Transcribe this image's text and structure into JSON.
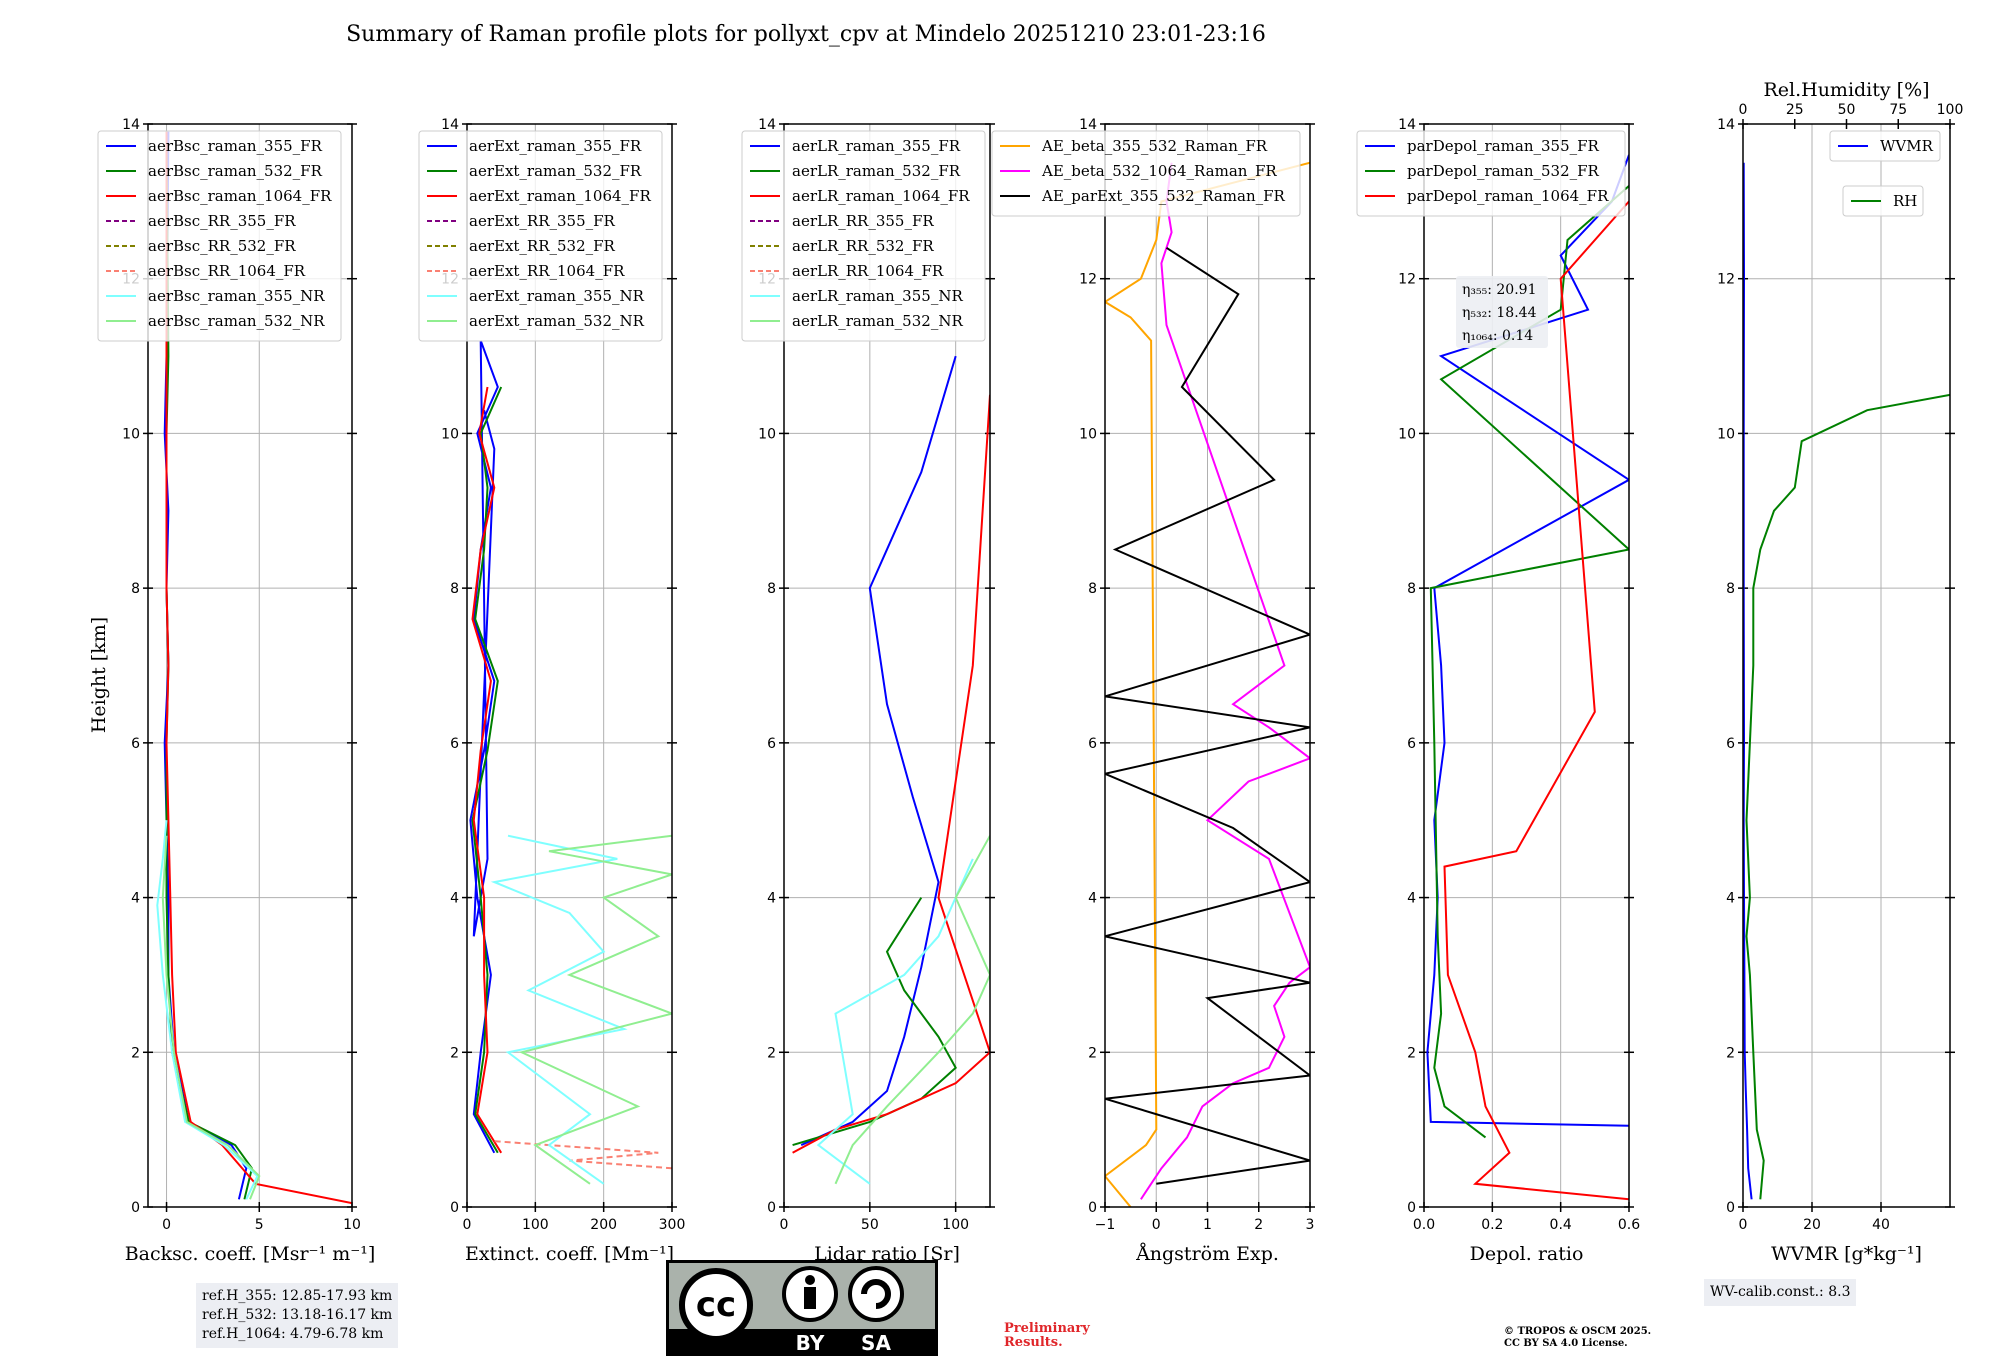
{
  "title": "Summary of Raman profile plots for pollyxt_cpv at Mindelo 20251210 23:01-23:16",
  "ylabel": "Height [km]",
  "height_ticks": [
    "0",
    "2",
    "4",
    "6",
    "8",
    "10",
    "12",
    "14"
  ],
  "colors": {
    "blue": "#0000ff",
    "green": "#008000",
    "red": "#ff0000",
    "purple": "#800080",
    "olive": "#808000",
    "salmon": "#fa8072",
    "cyan": "#7fffff",
    "lightgreen": "#90ee90",
    "orange": "#ffa500",
    "magenta": "#ff00ff",
    "black": "#000000"
  },
  "chart_data": [
    {
      "type": "line",
      "xlabel": "Backsc. coeff. [Msr⁻¹ m⁻¹]",
      "ylabel": "Height [km]",
      "xlim": [
        -1,
        10
      ],
      "ylim": [
        0,
        14
      ],
      "xticks": [
        "0",
        "5",
        "10"
      ],
      "legend": [
        "aerBsc_raman_355_FR",
        "aerBsc_raman_532_FR",
        "aerBsc_raman_1064_FR",
        "aerBsc_RR_355_FR",
        "aerBsc_RR_532_FR",
        "aerBsc_RR_1064_FR",
        "aerBsc_raman_355_NR",
        "aerBsc_raman_532_NR"
      ],
      "legend_position": "top-left",
      "series": [
        {
          "name": "aerBsc_raman_355_FR",
          "color": "blue",
          "x": [
            3.9,
            4.3,
            3.5,
            1.2,
            0.4,
            0.1,
            0.1,
            0.0,
            -0.1,
            0.1,
            0.0,
            0.1,
            -0.1,
            0.0,
            0.1
          ],
          "y": [
            0.1,
            0.5,
            0.8,
            1.1,
            2,
            3,
            4,
            5,
            6,
            7,
            8,
            9,
            10,
            11,
            13.9
          ]
        },
        {
          "name": "aerBsc_raman_532_FR",
          "color": "green",
          "x": [
            4.2,
            4.6,
            3.7,
            1.2,
            0.3,
            0.1,
            0.0,
            0.0,
            0.0,
            0.1,
            0.0,
            0.0,
            0.0,
            0.1,
            0.0
          ],
          "y": [
            0.1,
            0.5,
            0.8,
            1.1,
            2,
            3,
            4,
            5,
            6,
            7,
            8,
            9,
            10,
            11,
            13.9
          ]
        },
        {
          "name": "aerBsc_raman_1064_FR",
          "color": "red",
          "x": [
            10,
            4.8,
            3.0,
            1.3,
            0.5,
            0.3,
            0.2,
            0.1,
            0.0,
            0.1,
            0.0,
            0.0,
            0.0,
            0.0,
            0.0
          ],
          "y": [
            0.05,
            0.3,
            0.8,
            1.1,
            2,
            3,
            4,
            5,
            6,
            7,
            8,
            9,
            10,
            11,
            13.9
          ]
        },
        {
          "name": "aerBsc_raman_355_NR",
          "color": "cyan",
          "x": [
            4.3,
            4.9,
            3.1,
            1.0,
            0.3,
            -0.2,
            -0.5,
            -0.2,
            0.0
          ],
          "y": [
            0.1,
            0.4,
            0.8,
            1.1,
            2,
            3,
            3.9,
            4.5,
            5.0
          ]
        },
        {
          "name": "aerBsc_raman_532_NR",
          "color": "lightgreen",
          "x": [
            4.5,
            5.0,
            3.3,
            1.1,
            0.4,
            0.0,
            -0.2,
            0.0
          ],
          "y": [
            0.1,
            0.4,
            0.8,
            1.1,
            2,
            3,
            4,
            4.8
          ]
        }
      ]
    },
    {
      "type": "line",
      "xlabel": "Extinct. coeff. [Mm⁻¹]",
      "ylabel": "Height [km]",
      "xlim": [
        0,
        300
      ],
      "ylim": [
        0,
        14
      ],
      "xticks": [
        "0",
        "100",
        "200",
        "300"
      ],
      "legend": [
        "aerExt_raman_355_FR",
        "aerExt_raman_532_FR",
        "aerExt_raman_1064_FR",
        "aerExt_RR_355_FR",
        "aerExt_RR_532_FR",
        "aerExt_RR_1064_FR",
        "aerExt_raman_355_NR",
        "aerExt_raman_532_NR"
      ],
      "legend_position": "top-left",
      "series": [
        {
          "name": "aerExt_raman_355_FR",
          "color": "blue",
          "x": [
            40,
            10,
            20,
            35,
            15,
            5,
            25,
            40,
            10,
            20,
            35,
            15,
            45,
            20,
            30,
            10,
            40,
            25
          ],
          "y": [
            0.7,
            1.2,
            2,
            3,
            4,
            5,
            5.9,
            6.8,
            7.6,
            8.5,
            9.3,
            10,
            10.6,
            11.2,
            4.5,
            3.5,
            9.8,
            10.3
          ]
        },
        {
          "name": "aerExt_raman_532_FR",
          "color": "green",
          "x": [
            45,
            12,
            25,
            30,
            20,
            8,
            30,
            45,
            12,
            25,
            30,
            20,
            50
          ],
          "y": [
            0.7,
            1.2,
            2,
            3,
            4,
            5,
            5.9,
            6.8,
            7.6,
            8.5,
            9.3,
            10,
            10.6
          ]
        },
        {
          "name": "aerExt_raman_1064_FR",
          "color": "red",
          "x": [
            50,
            15,
            30,
            25,
            25,
            10,
            20,
            35,
            8,
            20,
            40,
            18,
            30
          ],
          "y": [
            0.7,
            1.2,
            2,
            3,
            4,
            5,
            5.9,
            6.8,
            7.6,
            8.5,
            9.3,
            10,
            10.6
          ]
        },
        {
          "name": "aerExt_RR_1064_FR",
          "color": "salmon",
          "x": [
            300,
            150,
            280,
            120,
            40
          ],
          "y": [
            0.5,
            0.6,
            0.7,
            0.8,
            0.85
          ]
        },
        {
          "name": "aerExt_raman_355_NR",
          "color": "cyan",
          "x": [
            200,
            120,
            180,
            60,
            230,
            90,
            200,
            150,
            40,
            220,
            60
          ],
          "y": [
            0.3,
            0.8,
            1.2,
            2,
            2.3,
            2.8,
            3.3,
            3.8,
            4.2,
            4.5,
            4.8
          ]
        },
        {
          "name": "aerExt_raman_532_NR",
          "color": "lightgreen",
          "x": [
            180,
            100,
            250,
            80,
            300,
            150,
            280,
            200,
            300,
            120,
            300
          ],
          "y": [
            0.3,
            0.8,
            1.3,
            2,
            2.5,
            3,
            3.5,
            4,
            4.3,
            4.6,
            4.8
          ]
        }
      ]
    },
    {
      "type": "line",
      "xlabel": "Lidar ratio [Sr]",
      "ylabel": "Height [km]",
      "xlim": [
        0,
        120
      ],
      "ylim": [
        0,
        14
      ],
      "xticks": [
        "0",
        "50",
        "100"
      ],
      "legend": [
        "aerLR_raman_355_FR",
        "aerLR_raman_532_FR",
        "aerLR_raman_1064_FR",
        "aerLR_RR_355_FR",
        "aerLR_RR_532_FR",
        "aerLR_RR_1064_FR",
        "aerLR_raman_355_NR",
        "aerLR_raman_532_NR"
      ],
      "legend_position": "top-left",
      "series": [
        {
          "name": "aerLR_raman_355_FR",
          "color": "blue",
          "x": [
            10,
            40,
            60,
            70,
            80,
            90,
            75,
            60,
            50,
            80,
            100
          ],
          "y": [
            0.8,
            1.1,
            1.5,
            2.2,
            3.1,
            4.2,
            5.3,
            6.5,
            8.0,
            9.5,
            11.0
          ]
        },
        {
          "name": "aerLR_raman_532_FR",
          "color": "green",
          "x": [
            5,
            50,
            80,
            100,
            90,
            70,
            60,
            80
          ],
          "y": [
            0.8,
            1.1,
            1.4,
            1.8,
            2.2,
            2.8,
            3.3,
            4.0
          ]
        },
        {
          "name": "aerLR_raman_1064_FR",
          "color": "red",
          "x": [
            5,
            30,
            60,
            100,
            120,
            90,
            110,
            120
          ],
          "y": [
            0.7,
            1.0,
            1.2,
            1.6,
            2.0,
            4.0,
            7.0,
            10.5
          ]
        },
        {
          "name": "aerLR_raman_355_NR",
          "color": "cyan",
          "x": [
            50,
            20,
            40,
            30,
            70,
            90,
            110
          ],
          "y": [
            0.3,
            0.8,
            1.2,
            2.5,
            3.0,
            3.5,
            4.5
          ]
        },
        {
          "name": "aerLR_raman_532_NR",
          "color": "lightgreen",
          "x": [
            30,
            40,
            60,
            90,
            110,
            120,
            100,
            120
          ],
          "y": [
            0.3,
            0.8,
            1.3,
            2.0,
            2.5,
            3.0,
            4.0,
            4.8
          ]
        }
      ]
    },
    {
      "type": "line",
      "xlabel": "Ångström Exp.",
      "ylabel": "Height [km]",
      "xlim": [
        -1,
        3
      ],
      "ylim": [
        0,
        14
      ],
      "xticks": [
        "−1",
        "0",
        "1",
        "2",
        "3"
      ],
      "legend": [
        "AE_beta_355_532_Raman_FR",
        "AE_beta_532_1064_Raman_FR",
        "AE_parExt_355_532_Raman_FR"
      ],
      "legend_position": "top-left",
      "series": [
        {
          "name": "AE_beta_355_532_Raman_FR",
          "color": "orange",
          "x": [
            -0.5,
            -1.0,
            -0.2,
            0.0,
            -0.1,
            -0.5,
            -1.0,
            -0.3,
            0.0,
            0.1,
            3.0
          ],
          "y": [
            0.0,
            0.4,
            0.8,
            1.0,
            11.2,
            11.5,
            11.7,
            12.0,
            12.5,
            13.0,
            13.5
          ]
        },
        {
          "name": "AE_beta_532_1064_Raman_FR",
          "color": "magenta",
          "x": [
            -0.3,
            0.1,
            0.6,
            0.9,
            1.5,
            2.2,
            2.5,
            2.3,
            2.6,
            3.0,
            2.2,
            1.0,
            1.8,
            3.0,
            2.2,
            1.5,
            2.5,
            0.2,
            0.1,
            0.3,
            0.2,
            0.3
          ],
          "y": [
            0.1,
            0.5,
            0.9,
            1.3,
            1.6,
            1.8,
            2.2,
            2.6,
            2.9,
            3.1,
            4.5,
            5.0,
            5.5,
            5.8,
            6.2,
            6.5,
            7.0,
            11.4,
            12.2,
            12.6,
            13.0,
            13.5
          ]
        },
        {
          "name": "AE_parExt_355_532_Raman_FR",
          "color": "black",
          "x": [
            0.0,
            3.0,
            -1.0,
            3.0,
            1.0,
            3.0,
            -1.0,
            3.0,
            1.5,
            -1.0,
            3.0,
            -1.0,
            3.0,
            -0.8,
            2.3,
            0.5,
            1.6,
            0.2
          ],
          "y": [
            0.3,
            0.6,
            1.4,
            1.7,
            2.7,
            2.9,
            3.5,
            4.2,
            4.9,
            5.6,
            6.2,
            6.6,
            7.4,
            8.5,
            9.4,
            10.6,
            11.8,
            12.4
          ]
        }
      ]
    },
    {
      "type": "line",
      "xlabel": "Depol. ratio",
      "ylabel": "Height [km]",
      "xlim": [
        0.0,
        0.6
      ],
      "ylim": [
        0,
        14
      ],
      "xticks": [
        "0.0",
        "0.2",
        "0.4",
        "0.6"
      ],
      "legend": [
        "parDepol_raman_355_FR",
        "parDepol_raman_532_FR",
        "parDepol_raman_1064_FR"
      ],
      "legend_position": "top-left",
      "annotations": [
        "η₃₅₅: 20.91",
        "η₅₃₂: 18.44",
        "η₁₀₆₄: 0.14"
      ],
      "series": [
        {
          "name": "parDepol_raman_355_FR",
          "color": "blue",
          "x": [
            0.6,
            0.02,
            0.01,
            0.03,
            0.04,
            0.03,
            0.06,
            0.05,
            0.04,
            0.03,
            0.6,
            0.05,
            0.48,
            0.4,
            0.55,
            0.6
          ],
          "y": [
            1.05,
            1.1,
            2,
            3,
            4,
            5,
            6,
            7,
            7.5,
            8,
            9.4,
            11,
            11.6,
            12.3,
            13.0,
            13.6
          ]
        },
        {
          "name": "parDepol_raman_532_FR",
          "color": "green",
          "x": [
            0.18,
            0.06,
            0.03,
            0.05,
            0.04,
            0.03,
            0.02,
            0.6,
            0.05,
            0.4,
            0.42,
            0.6
          ],
          "y": [
            0.9,
            1.3,
            1.8,
            2.5,
            3.5,
            6,
            8,
            8.5,
            10.7,
            11.6,
            12.5,
            13.2
          ]
        },
        {
          "name": "parDepol_raman_1064_FR",
          "color": "red",
          "x": [
            0.6,
            0.15,
            0.25,
            0.18,
            0.15,
            0.07,
            0.06,
            0.27,
            0.5,
            0.4,
            0.6
          ],
          "y": [
            0.1,
            0.3,
            0.7,
            1.3,
            2.0,
            3.0,
            4.4,
            4.6,
            6.4,
            12.0,
            13.0
          ]
        }
      ]
    },
    {
      "type": "line",
      "xlabel": "WVMR [g*kg⁻¹]",
      "ylabel": "Height [km]",
      "top_xlabel": "Rel.Humidity [%]",
      "xlim": [
        0,
        60
      ],
      "ylim": [
        0,
        14
      ],
      "xticks": [
        "0",
        "20",
        "40"
      ],
      "top_xticks": [
        "0",
        "25",
        "50",
        "75",
        "100"
      ],
      "legend": [
        "WVMR",
        "RH"
      ],
      "legend_position": "top-right",
      "series": [
        {
          "name": "WVMR",
          "color": "blue",
          "x": [
            2.5,
            1.5,
            1.2,
            0.8,
            0.5,
            0.4,
            0.3,
            0.2,
            0.3,
            0.2,
            0.2,
            0.3,
            0.2
          ],
          "y": [
            0.1,
            0.5,
            1.0,
            1.5,
            2.0,
            3.0,
            4.0,
            5.0,
            6.0,
            8.0,
            10.0,
            12.0,
            13.5
          ]
        },
        {
          "name": "RH",
          "color": "green",
          "x": [
            5,
            6,
            4,
            3,
            2,
            1,
            2,
            1,
            2,
            3,
            3,
            5,
            9,
            15,
            17,
            36,
            60
          ],
          "y": [
            0.1,
            0.6,
            1.0,
            2.0,
            3.0,
            3.5,
            4.0,
            5.0,
            6.0,
            7.0,
            8.0,
            8.5,
            9.0,
            9.3,
            9.9,
            10.3,
            10.5
          ]
        }
      ]
    }
  ],
  "refbox": [
    "ref.H_355: 12.85-17.93 km",
    "ref.H_532: 13.18-16.17 km",
    "ref.H_1064: 4.79-6.78 km"
  ],
  "wv_calib": "WV-calib.const.: 8.3",
  "prelim": [
    "Preliminary",
    "Results."
  ],
  "copyright": [
    "© TROPOS & OSCM 2025.",
    "CC BY SA 4.0 License."
  ],
  "cc_labels": {
    "cc": "cc",
    "by": "BY",
    "sa": "SA"
  }
}
